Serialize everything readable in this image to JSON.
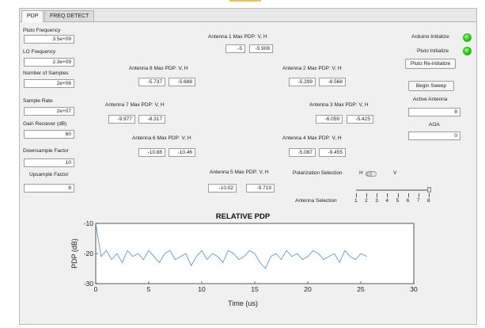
{
  "tabs": [
    "PDP",
    "FREQ DETECT"
  ],
  "settings": [
    {
      "label": "Pluto Frequency",
      "value": "3.5e+09"
    },
    {
      "label": "LO Frequency",
      "value": "2.3e+09"
    },
    {
      "label": "Number of Samples",
      "value": "2e+06"
    },
    {
      "label": "Sample Rate",
      "value": "2e+07"
    },
    {
      "label": "Gain Reciever (dB)",
      "value": "60"
    },
    {
      "label": "Downsample Factor",
      "value": "10"
    },
    {
      "label": "Upsample Factor",
      "value": "8"
    }
  ],
  "antennas": [
    {
      "label": "Antenna 1 Max PDP: V, H",
      "v": "-5",
      "h": "-5.908"
    },
    {
      "label": "Antenna 2 Max PDP: V, H",
      "v": "-5.299",
      "h": "-8.568"
    },
    {
      "label": "Antenna 3 Max PDP: V, H",
      "v": "-6.059",
      "h": "-5.425"
    },
    {
      "label": "Antenna 4 Max PDP: V, H",
      "v": "-5.087",
      "h": "-9.455"
    },
    {
      "label": "Antenna 5 Max PDP: V, H",
      "v": "-10.02",
      "h": "-9.719"
    },
    {
      "label": "Antenna 6 Max PDP: V, H",
      "v": "-10.88",
      "h": "-10.46"
    },
    {
      "label": "Antenna 7 Max PDP: V, H",
      "v": "-9.977",
      "h": "-8.317"
    },
    {
      "label": "Antenna 8 Max PDP: V, H",
      "v": "-5.737",
      "h": "-5.688"
    }
  ],
  "status": {
    "arduino_label": "Arduino Initialize",
    "pluto_label": "Pluto Initialize",
    "led_color": "#2fc21e",
    "reinit_button": "Pluto Re-initialize",
    "sweep_button": "Begin Sweep",
    "active_antenna_label": "Active Antenna",
    "active_antenna_value": "8",
    "aoa_label": "AOA",
    "aoa_value": "0"
  },
  "polarization": {
    "label": "Polarization Selection",
    "left": "H",
    "right": "V",
    "state": "H"
  },
  "antenna_selection": {
    "label": "Antenna Selection",
    "ticks": [
      "1",
      "2",
      "3",
      "4",
      "5",
      "6",
      "7",
      "8"
    ],
    "selected": 8
  },
  "chart_data": {
    "type": "line",
    "title": "RELATIVE PDP",
    "xlabel": "Time (us)",
    "ylabel": "PDP (dB)",
    "xlim": [
      0,
      30
    ],
    "ylim": [
      -30,
      -10
    ],
    "xticks": [
      0,
      5,
      10,
      15,
      20,
      25,
      30
    ],
    "yticks": [
      -10,
      -20,
      -30
    ],
    "series": [
      {
        "color": "#4a90c8",
        "x": [
          0,
          0.5,
          1,
          1.5,
          2,
          2.5,
          3,
          3.5,
          4,
          4.5,
          5,
          5.5,
          6,
          6.5,
          7,
          7.5,
          8,
          8.5,
          9,
          9.5,
          10,
          10.5,
          11,
          11.5,
          12,
          12.5,
          13,
          13.5,
          14,
          14.5,
          15,
          15.5,
          16,
          16.5,
          17,
          17.5,
          18,
          18.5,
          19,
          19.5,
          20,
          20.5,
          21,
          21.5,
          22,
          22.5,
          23,
          23.5,
          24,
          24.5,
          25,
          25.6
        ],
        "y": [
          -10,
          -21,
          -19,
          -22,
          -20,
          -23,
          -19,
          -21,
          -20,
          -22,
          -19,
          -21,
          -23,
          -20,
          -19,
          -22,
          -21,
          -20,
          -24,
          -21,
          -19,
          -22,
          -20,
          -21,
          -23,
          -19,
          -20,
          -22,
          -21,
          -19,
          -20,
          -23,
          -25,
          -21,
          -20,
          -22,
          -19,
          -21,
          -20,
          -22,
          -21,
          -19,
          -20,
          -22,
          -21,
          -20,
          -23,
          -19,
          -21,
          -22,
          -20,
          -21
        ]
      }
    ]
  }
}
